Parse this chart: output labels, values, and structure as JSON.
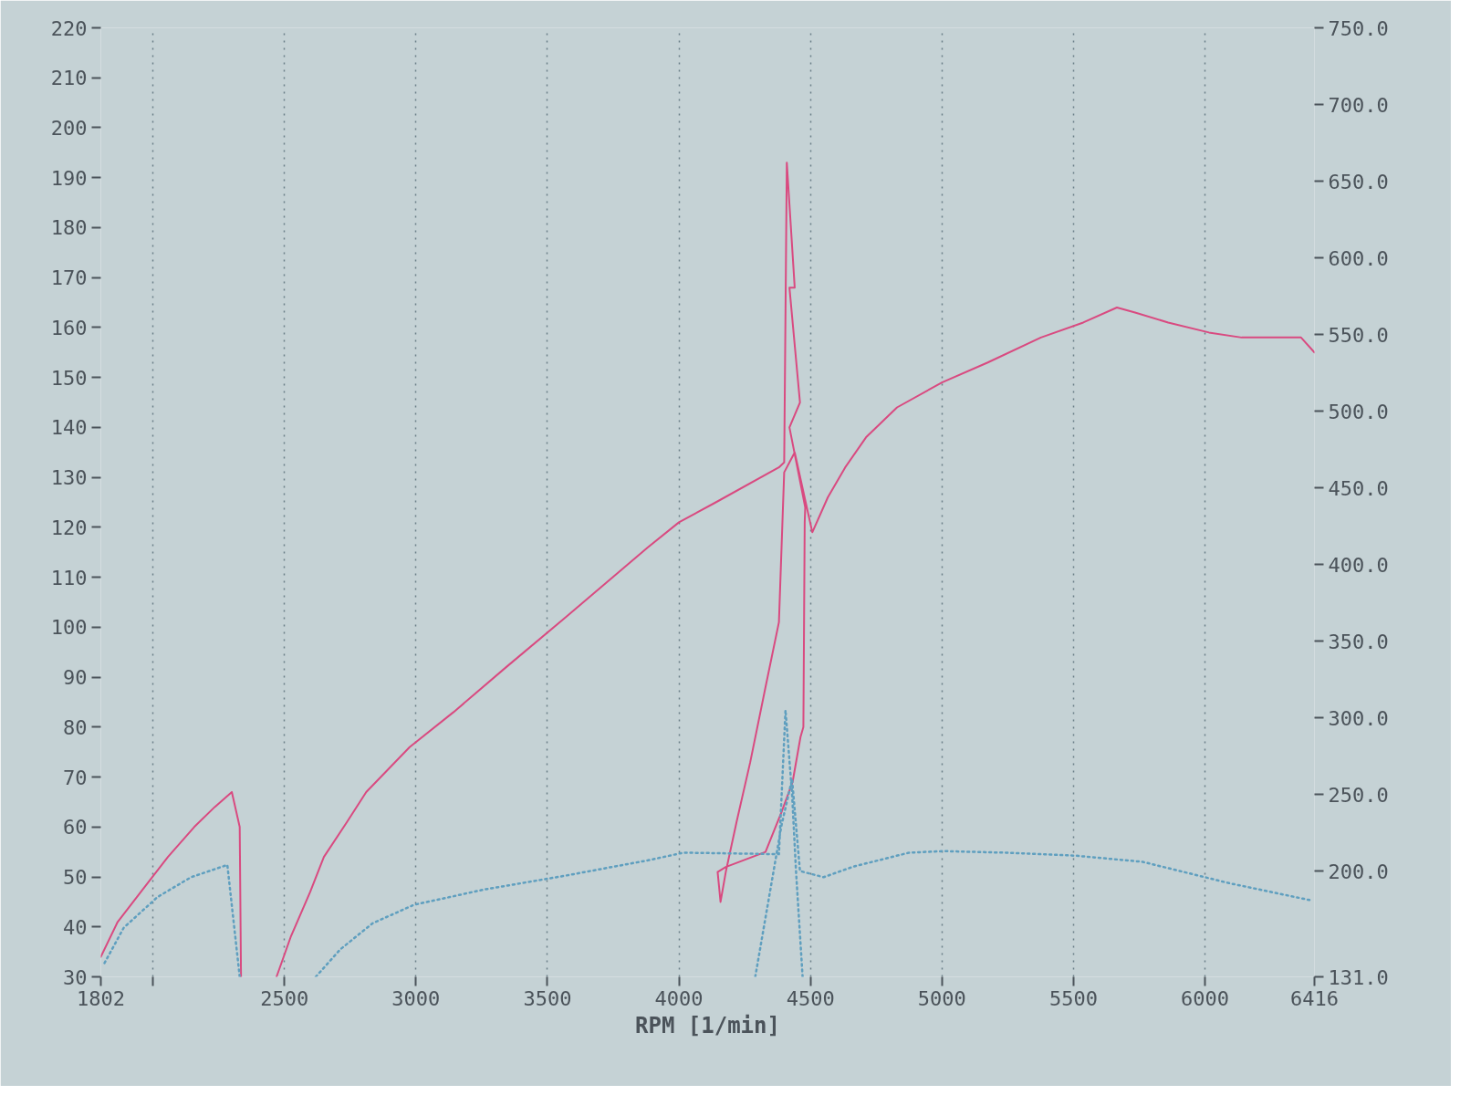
{
  "chart_data": {
    "type": "line",
    "xlabel": "RPM [1/min]",
    "xlim": [
      1802,
      6416
    ],
    "xticks": [
      1802,
      {
        "value": 2000,
        "label": null
      },
      2500,
      3000,
      3500,
      4000,
      4500,
      5000,
      5500,
      6000,
      6416
    ],
    "ylim": [
      30,
      220
    ],
    "yticks": [
      30,
      40,
      50,
      60,
      70,
      80,
      90,
      100,
      110,
      120,
      130,
      140,
      150,
      160,
      170,
      180,
      190,
      200,
      210,
      220
    ],
    "y2lim": [
      131,
      750
    ],
    "y2ticks": [
      {
        "value": 131,
        "label": "131.0"
      },
      {
        "value": 200,
        "label": "200.0"
      },
      {
        "value": 250,
        "label": "250.0"
      },
      {
        "value": 300,
        "label": "300.0"
      },
      {
        "value": 350,
        "label": "350.0"
      },
      {
        "value": 400,
        "label": "400.0"
      },
      {
        "value": 450,
        "label": "450.0"
      },
      {
        "value": 500,
        "label": "500.0"
      },
      {
        "value": 550,
        "label": "550.0"
      },
      {
        "value": 600,
        "label": "600.0"
      },
      {
        "value": 650,
        "label": "650.0"
      },
      {
        "value": 700,
        "label": "700.0"
      },
      {
        "value": 750,
        "label": "750.0"
      }
    ],
    "grid": "x",
    "series": [
      {
        "color": "#d94a80",
        "line_style": "solid",
        "x": [
          1802,
          1866,
          1969,
          2057,
          2157,
          2235,
          2300,
          2330,
          2335,
          2400,
          2470,
          2524,
          2598,
          2650,
          2738,
          2811,
          2976,
          3143,
          3343,
          3569,
          3882,
          4000,
          4140,
          4380,
          4400,
          4410,
          4440,
          4420,
          4460,
          4420,
          4480,
          4478,
          4473,
          4462,
          4432,
          4390,
          4329,
          4178,
          4147,
          4158,
          4178,
          4219,
          4271,
          4329,
          4380,
          4400,
          4440,
          4507,
          4566,
          4632,
          4711,
          4829,
          5000,
          5174,
          5376,
          5537,
          5665,
          5734,
          5860,
          6015,
          6139,
          6239,
          6365,
          6416
        ],
        "values": [
          34,
          41,
          48,
          54,
          60,
          64,
          67,
          60,
          30,
          null,
          30,
          38,
          47,
          54,
          61,
          67,
          76,
          83,
          92,
          102,
          116,
          121,
          125,
          132,
          133,
          193,
          168,
          168,
          145,
          140,
          124,
          121,
          80,
          78,
          69,
          63,
          55,
          52,
          51,
          45,
          51,
          61,
          73,
          88,
          101,
          131,
          135,
          119,
          126,
          132,
          138,
          144,
          149,
          153,
          158,
          161,
          164,
          163,
          161,
          159,
          158,
          158,
          158,
          155
        ]
      },
      {
        "color": "#5f9fbf",
        "line_style": "dotted",
        "axis": "y2",
        "x": [
          1816,
          1889,
          2017,
          2145,
          2283,
          2330,
          2480,
          2619,
          2713,
          2836,
          2993,
          3261,
          3569,
          3882,
          4017,
          4380,
          4405,
          4430,
          4445,
          4470,
          4380,
          4290,
          4390,
          4430,
          4460,
          4550,
          4665,
          4875,
          5007,
          5240,
          5510,
          5763,
          6094,
          6400
        ],
        "values": [
          140,
          163,
          183,
          196,
          204,
          131,
          null,
          131,
          149,
          166,
          178,
          188,
          197,
          207,
          212,
          211,
          305,
          250,
          200,
          131,
          null,
          131,
          230,
          260,
          200,
          196,
          203,
          212,
          213,
          212,
          210,
          206,
          192,
          181
        ]
      }
    ]
  }
}
